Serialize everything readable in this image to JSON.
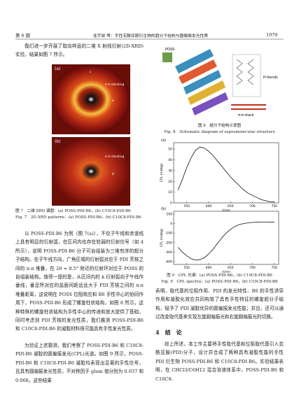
{
  "header": {
    "issue": "第 6 期",
    "running_title": "连宇锐 等：手性苝酰亚胺衍生物的超分子结构与圆偏振发光性质",
    "page": "1079"
  },
  "left": {
    "intro": "我们进一步开展了取向样品的二维 X 射线衍射(2D-XRD)实验，结果如图 7 所示。",
    "figure7": {
      "panel_a": "(a)",
      "panel_b": "(b)",
      "stack_label": "π-π stacking",
      "mark_a": "a",
      "mark_b": "b'",
      "mark_c": "c",
      "caption_cn": "图 7　二维 XRD 谱图：(a) POSS-PDI-B6，(b) C10C8-PDI-B6",
      "caption_en": "Fig. 7　2D XRD patterns：(a) POSS-PDI-B6，(b) C10C8-PDI-B6"
    },
    "paragraphs": [
      "以 POSS-PDI-B6 为例（图 7(a)），不仅子午线和赤道线上具有明显的衍射弧，在区间内也存在较弱的衍射信号（如 4 所示），说明 POSS-PDI-B6 分子可自组装为三维有序的超分子结构。在子午线方向，广角区域的衍射弧对应于 PDI 芳核之间的 π-π 堆叠，在 2θ ≈ 8.5° 附近的衍射环对应于 POSS 的自组装结构。值得一提的是，从区间内的 k 衍射弧向子午线作垂线，垂足所对应的晶面间距远远大于 PDI 芳核之间的 π-π 堆叠距离，这说明在 POSS 位阻效应和 B6 手性中心的协同作用下，POSS-PDI-B6 形成了螺旋柱状结构，如图 8 所示。这种特殊的螺旋柱状结构为手性中心的传递和放大提供了基础，同时考虑到 PDI 芳核的发光性质，我们推测 POSS-PDI-B6 和 C10C8-PDI-B6 的凝胶材料很可能具有手性发光性质。",
      "为验证上述猜测，我们考察了 POSS-PDI-B6 和 C10C8-PDI-B6 凝胶的圆偏振发光(CPL)光谱。如图 9 所示，POSS-PDI-B6 和 C10C8-PDI-B6 凝胶均表现出显著的手性信号，且具有圆偏振发光性质，不对称因子 glum 值分别为 0.037 和 0.068。这些结果"
    ]
  },
  "right": {
    "figure8": {
      "label_poss": "POSS",
      "label_hbonds": "H-bonds",
      "label_stack": "π-π stack",
      "caption_cn": "图 8　超分子结构示意图",
      "caption_en": "Fig. 8　Schematic diagram of supramolecular structure"
    },
    "figure9": {
      "panels": [
        {
          "label": "(a)",
          "y_label": "CPL (mdeg)",
          "x_label": "λ/nm",
          "x": [
            530,
            540,
            550,
            560,
            570,
            580,
            590,
            600,
            610,
            620,
            630,
            640,
            650,
            660,
            670,
            680,
            690,
            700,
            710,
            720,
            730,
            740,
            750
          ],
          "values": [
            12,
            22,
            33,
            42,
            49,
            52,
            51,
            48,
            44,
            39,
            34,
            29,
            24,
            20,
            16,
            12,
            9,
            7,
            5,
            3,
            2,
            1,
            1
          ],
          "xlim": [
            520,
            760
          ],
          "ylim": [
            0,
            56
          ],
          "xticks": [
            550,
            600,
            650,
            700,
            750
          ],
          "yticks": [
            0,
            10,
            20,
            30,
            40,
            50
          ]
        },
        {
          "label": "(b)",
          "y_label": "CPL (mdeg)",
          "x_label": "λ/nm",
          "x": [
            530,
            540,
            550,
            560,
            570,
            580,
            590,
            600,
            610,
            620,
            630,
            640,
            650,
            660,
            670,
            680,
            690,
            700,
            710,
            720,
            730,
            740,
            750
          ],
          "values": [
            -250,
            -300,
            -340,
            -370,
            -385,
            -380,
            -360,
            -320,
            -270,
            -210,
            -150,
            -100,
            -60,
            -30,
            -10,
            0,
            8,
            12,
            14,
            15,
            15,
            14,
            14
          ],
          "xlim": [
            520,
            760
          ],
          "ylim": [
            -430,
            130
          ],
          "xticks": [
            550,
            600,
            650,
            700,
            750
          ],
          "yticks": [
            100,
            0,
            -100,
            -200,
            -300,
            -400
          ]
        }
      ],
      "caption_cn": "图 9　CPL 光谱：(a) POSS-PDI-B6，(b) C10C8-PDI-B6",
      "caption_en": "Fig. 9　CPL spectra：(a) POSS-PDI-B6，(b) C10C8-PDI-B6"
    },
    "paragraph": "表明，取代基的位阻作用、PDI 的发光特性、B6 的手性诱导作用和凝胶化效应共同构筑了具有手性特征的螺旋超分子结构，赋予了 PDI 凝胶优异的圆偏振发光性能；并且，还可以通过改变取代基来实现左旋圆偏振光和右旋圆偏振光的切换。",
    "section_heading": "4　结　论",
    "conclusion": "综上所述，本工作主要将手性取代基和位阻取代基引入苝酰亚胺(PDI)分子，设计并合成了两种具有凝胶性能的手性 PDI 衍生物 POSS-PDI-B6 和 C10C8-PDI-B6。实验结果表明，在 CHCl3/C6H12 混合溶液体系中，POSS-PDI-B6 和 C10C8-"
  }
}
